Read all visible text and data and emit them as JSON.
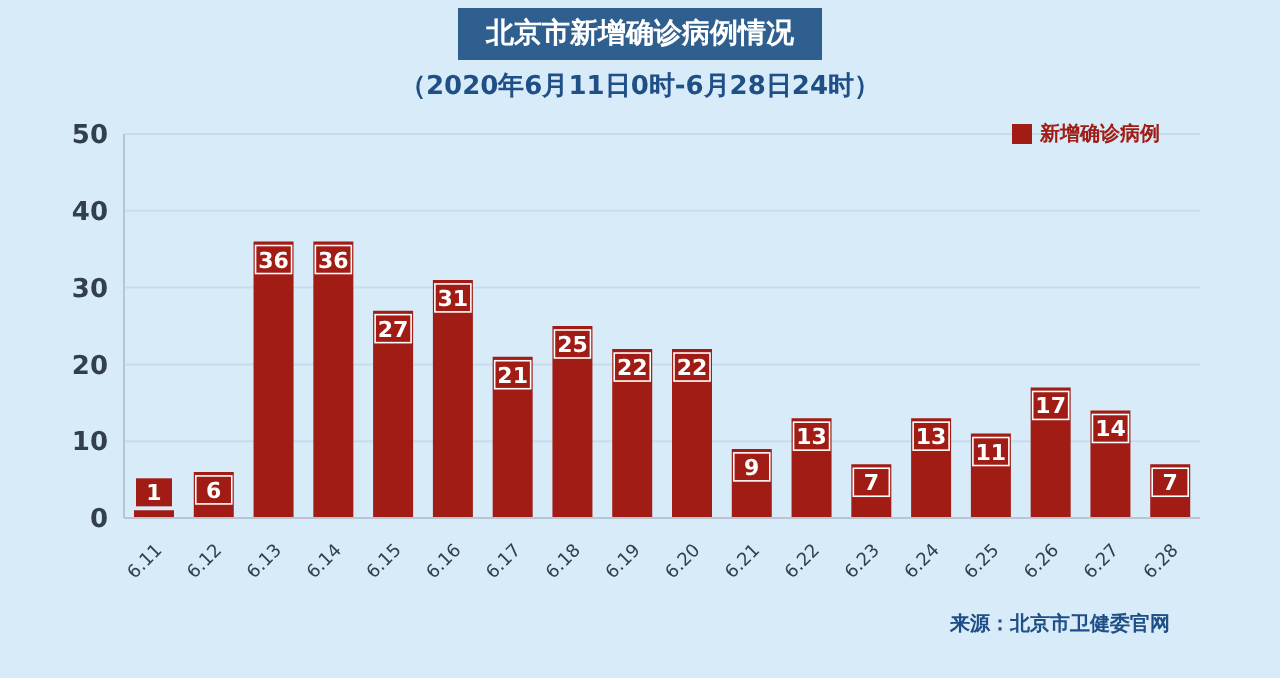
{
  "chart_data": {
    "type": "bar",
    "title": "北京市新增确诊病例情况",
    "subtitle": "（2020年6月11日0时-6月28日24时）",
    "categories": [
      "6.11",
      "6.12",
      "6.13",
      "6.14",
      "6.15",
      "6.16",
      "6.17",
      "6.18",
      "6.19",
      "6.20",
      "6.21",
      "6.22",
      "6.23",
      "6.24",
      "6.25",
      "6.26",
      "6.27",
      "6.28"
    ],
    "series": [
      {
        "name": "新增确诊病例",
        "color": "#a01c14",
        "values": [
          1,
          6,
          36,
          36,
          27,
          31,
          21,
          25,
          22,
          22,
          9,
          13,
          7,
          13,
          11,
          17,
          14,
          7
        ]
      }
    ],
    "ylim": [
      0,
      50
    ],
    "yticks": [
      0,
      10,
      20,
      30,
      40,
      50
    ],
    "grid": "y",
    "legend": "top right",
    "data_labels": true,
    "annotations": [
      "来源：北京市卫健委官网"
    ]
  }
}
